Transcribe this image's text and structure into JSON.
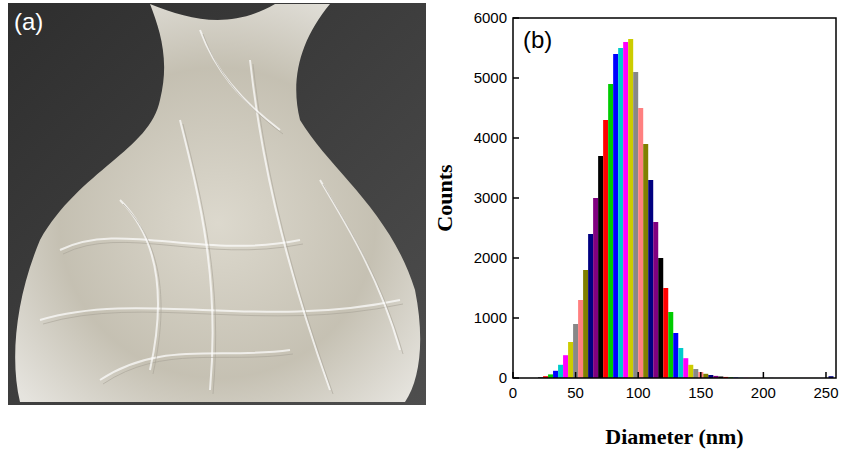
{
  "photo": {
    "label": "(a)"
  },
  "chart_data": {
    "type": "histogram",
    "title": "(b)",
    "x_label": "Diameter (nm)",
    "y_label": "Counts",
    "bins": [
      20,
      24,
      28,
      32,
      36,
      40,
      44,
      48,
      52,
      56,
      60,
      64,
      68,
      72,
      76,
      80,
      84,
      88,
      92,
      96,
      100,
      104,
      108,
      112,
      116,
      120,
      124,
      128,
      132,
      136,
      140,
      144,
      148,
      152,
      156,
      160,
      164,
      168,
      172,
      176,
      180,
      184,
      188,
      192,
      196,
      200,
      204,
      208,
      212,
      216,
      220,
      224,
      228,
      232,
      236,
      240,
      244,
      248,
      252,
      256
    ],
    "values": [
      10,
      30,
      60,
      120,
      220,
      380,
      600,
      900,
      1300,
      1800,
      2400,
      3000,
      3700,
      4300,
      4900,
      5400,
      5500,
      5600,
      5650,
      5100,
      4500,
      3900,
      3300,
      2600,
      2000,
      1500,
      1100,
      750,
      500,
      330,
      220,
      150,
      100,
      70,
      50,
      35,
      25,
      18,
      12,
      8,
      5,
      4,
      3,
      3,
      2,
      2,
      2,
      1,
      1,
      1,
      1,
      1,
      1,
      1,
      1,
      1,
      1,
      1,
      30
    ],
    "colors": [
      "#000000",
      "#ff0000",
      "#00cc00",
      "#0000ff",
      "#00cccc",
      "#ff00ff",
      "#cccc00",
      "#888888",
      "#ff8080",
      "#808000",
      "#000080",
      "#800080",
      "#000000",
      "#ff0000",
      "#00cc00",
      "#0000ff",
      "#00cccc",
      "#ff00ff",
      "#cccc00",
      "#888888",
      "#ff8080",
      "#808000",
      "#000080",
      "#800080",
      "#000000",
      "#ff0000",
      "#00cc00",
      "#0000ff",
      "#00cccc",
      "#ff00ff",
      "#cccc00",
      "#888888",
      "#ff8080",
      "#808000",
      "#000080",
      "#800080",
      "#000000",
      "#ff0000",
      "#00cc00",
      "#0000ff",
      "#00cccc",
      "#ff00ff",
      "#cccc00",
      "#888888",
      "#ff8080",
      "#808000",
      "#000080",
      "#800080",
      "#000000",
      "#ff0000",
      "#00cc00",
      "#0000ff",
      "#00cccc",
      "#ff00ff",
      "#cccc00",
      "#888888",
      "#ff8080",
      "#808000",
      "#000080"
    ],
    "xlim": [
      0,
      258
    ],
    "ylim": [
      0,
      6000
    ],
    "xticks": [
      0,
      50,
      100,
      150,
      200,
      250
    ],
    "yticks": [
      0,
      1000,
      2000,
      3000,
      4000,
      5000,
      6000
    ]
  }
}
